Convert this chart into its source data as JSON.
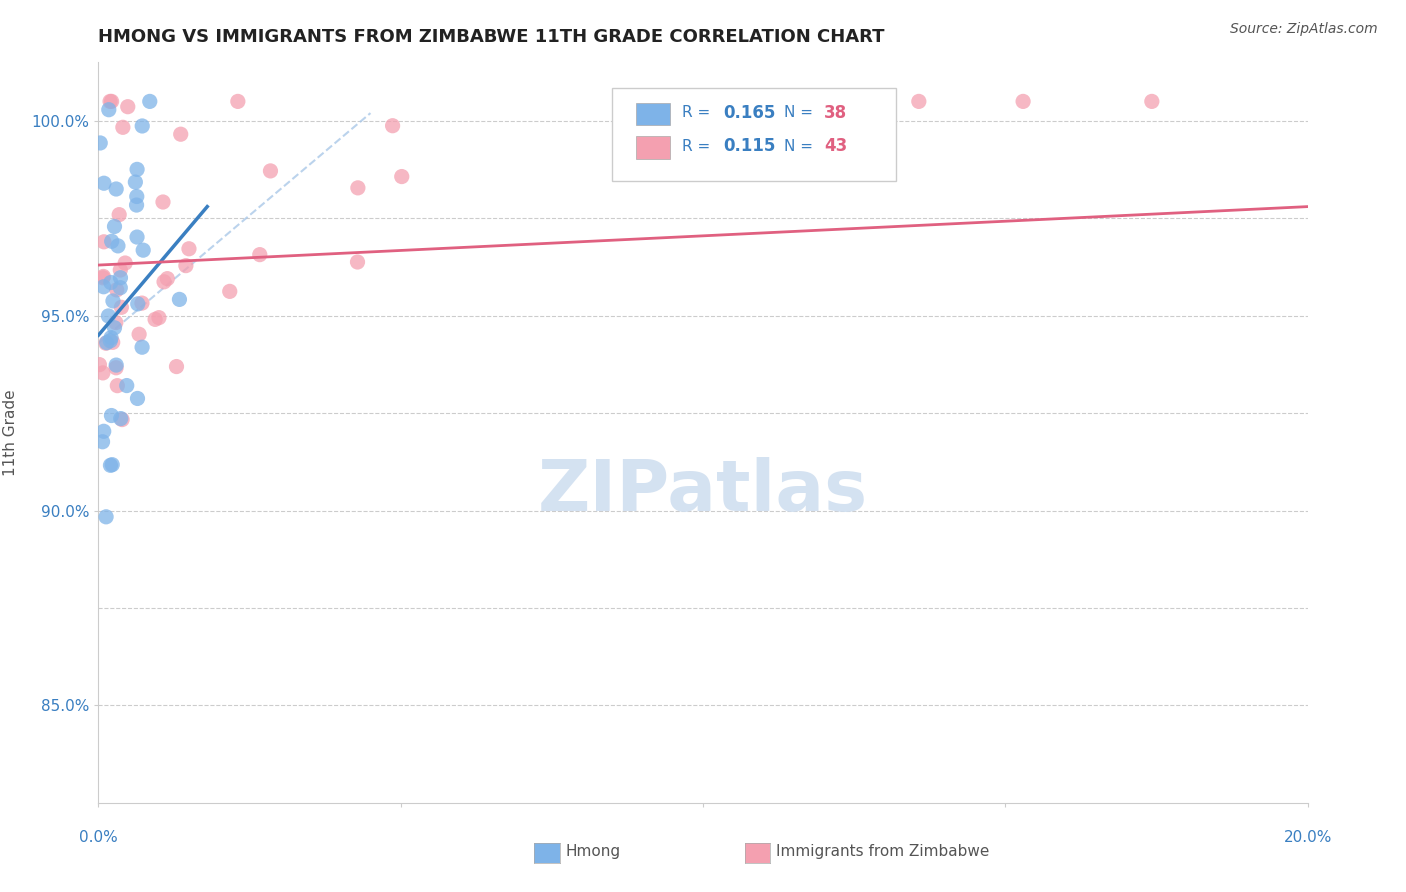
{
  "title": "HMONG VS IMMIGRANTS FROM ZIMBABWE 11TH GRADE CORRELATION CHART",
  "source": "Source: ZipAtlas.com",
  "ylabel": "11th Grade",
  "xmin": 0.0,
  "xmax": 20.0,
  "ymin": 82.5,
  "ymax": 101.5,
  "hmong_R": 0.165,
  "hmong_N": 38,
  "zimb_R": 0.115,
  "zimb_N": 43,
  "hmong_color": "#7eb3e8",
  "zimb_color": "#f4a0b0",
  "hmong_line_color": "#3a7fc1",
  "zimb_line_color": "#e06080",
  "diag_line_color": "#aac8e8",
  "background_color": "#ffffff",
  "watermark_color": "#d0dff0",
  "title_color": "#222222",
  "legend_text_color": "#3a7fc1",
  "legend_N_color": "#e06080",
  "axis_label_color": "#3a7fc1"
}
